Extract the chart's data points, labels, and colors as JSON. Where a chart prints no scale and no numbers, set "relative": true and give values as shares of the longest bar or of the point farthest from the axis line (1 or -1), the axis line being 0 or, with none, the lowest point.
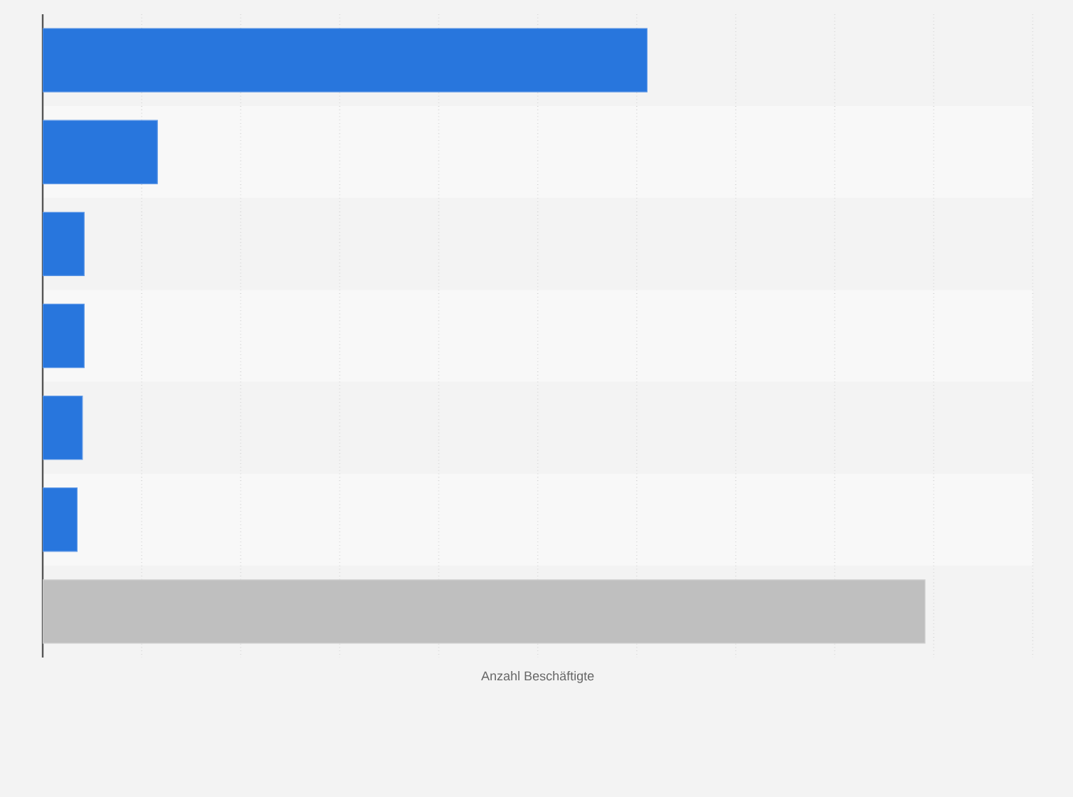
{
  "chart_data": {
    "type": "bar",
    "orientation": "horizontal",
    "relative": true,
    "xlabel": "Anzahl Beschäftigte",
    "categories": [
      null,
      null,
      null,
      null,
      null,
      null,
      null
    ],
    "values": [
      0.685,
      0.13,
      0.047,
      0.047,
      0.045,
      0.039,
      1
    ],
    "colors": [
      "#2876dd",
      "#2876dd",
      "#2876dd",
      "#2876dd",
      "#2876dd",
      "#2876dd",
      "#bfbfbf"
    ],
    "grid": "x"
  }
}
